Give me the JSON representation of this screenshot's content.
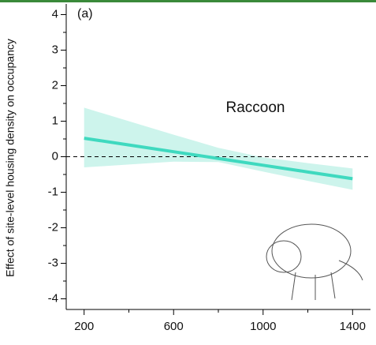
{
  "chart_data": {
    "type": "line",
    "panel_label": "(a)",
    "y_label": "Effect of site-level housing density on occupancy",
    "annotation": "Raccoon",
    "x": [
      200,
      400,
      600,
      800,
      1000,
      1200,
      1400
    ],
    "series": [
      {
        "name": "Raccoon",
        "color": "#3fd9bf",
        "band_color": "#cdf4ec",
        "values": [
          0.52,
          0.33,
          0.14,
          -0.05,
          -0.24,
          -0.43,
          -0.62
        ],
        "upper": [
          1.38,
          1.0,
          0.62,
          0.25,
          -0.02,
          -0.18,
          -0.33
        ],
        "lower": [
          -0.3,
          -0.22,
          -0.14,
          -0.15,
          -0.42,
          -0.68,
          -0.93
        ]
      }
    ],
    "xlim": [
      120,
      1480
    ],
    "xticks": [
      200,
      600,
      1000,
      1400
    ],
    "xminor": [
      400,
      800,
      1200
    ],
    "ylim": [
      -4.3,
      4.3
    ],
    "yticks": [
      -4,
      -3,
      -2,
      -1,
      0,
      1,
      2,
      3,
      4
    ],
    "yminor": [
      -3.5,
      -2.5,
      -1.5,
      -0.5,
      0.5,
      1.5,
      2.5,
      3.5
    ],
    "reference_line": 0
  }
}
